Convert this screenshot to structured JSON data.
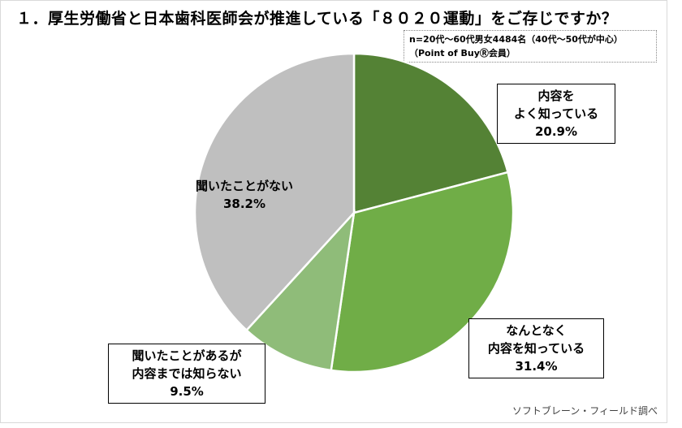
{
  "chart_data": {
    "type": "pie",
    "title": "１．厚生労働省と日本歯科医師会が推進している「８０２０運動」をご存じですか？",
    "note_lines": [
      "n=20代～60代男女4484名（40代～50代が中心）",
      "（Point of BuyⓇ会員）"
    ],
    "source": "ソフトブレーン・フィールド調べ",
    "slices": [
      {
        "label_lines": [
          "内容を",
          "よく知っている"
        ],
        "value": 20.9,
        "value_text": "20.9%",
        "color": "#548235"
      },
      {
        "label_lines": [
          "なんとなく",
          "内容を知っている"
        ],
        "value": 31.4,
        "value_text": "31.4%",
        "color": "#70AD47"
      },
      {
        "label_lines": [
          "聞いたことがあるが",
          "内容までは知らない"
        ],
        "value": 9.5,
        "value_text": "9.5%",
        "color": "#8FBC79"
      },
      {
        "label_lines": [
          "聞いたことがない"
        ],
        "value": 38.2,
        "value_text": "38.2%",
        "color": "#BFBFBF"
      }
    ]
  }
}
